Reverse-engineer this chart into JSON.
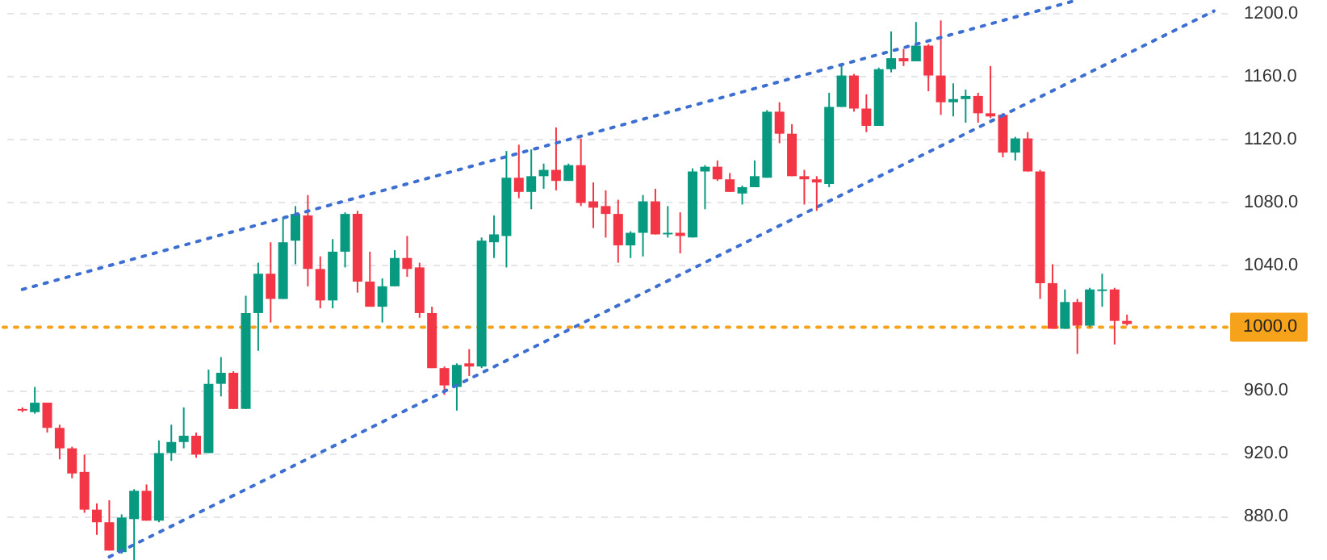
{
  "chart_data": {
    "type": "candlestick",
    "categories": [
      null,
      null,
      null,
      null,
      null,
      null,
      null,
      null,
      null,
      null,
      null,
      null,
      null,
      null,
      null,
      null,
      null,
      null,
      null,
      null,
      null,
      null,
      null,
      null,
      null,
      null,
      null,
      null,
      null,
      null,
      null,
      null,
      null,
      null,
      null,
      null,
      null,
      null,
      null,
      null,
      null,
      null,
      null,
      null,
      null,
      null,
      null,
      null,
      null,
      null,
      null,
      null,
      null,
      null,
      null,
      null,
      null,
      null,
      null,
      null,
      null,
      null,
      null,
      null,
      null,
      null,
      null,
      null,
      null,
      null,
      null,
      null,
      null,
      null,
      null,
      null,
      null,
      null,
      null,
      null,
      null,
      null,
      null,
      null,
      null,
      null,
      null,
      null,
      null,
      null,
      null,
      null,
      null,
      null,
      null,
      null,
      null
    ],
    "ohlc": [
      [
        948,
        949,
        946,
        947
      ],
      [
        946,
        962,
        945,
        952
      ],
      [
        952,
        952,
        933,
        936
      ],
      [
        936,
        938,
        916,
        923
      ],
      [
        923,
        924,
        904,
        907
      ],
      [
        908,
        919,
        882,
        884
      ],
      [
        884,
        888,
        868,
        876
      ],
      [
        876,
        890,
        858,
        858
      ],
      [
        857,
        881,
        856,
        879
      ],
      [
        878,
        897,
        852,
        896
      ],
      [
        896,
        900,
        877,
        877
      ],
      [
        877,
        928,
        876,
        920
      ],
      [
        920,
        938,
        915,
        927
      ],
      [
        927,
        949,
        923,
        931
      ],
      [
        931,
        933,
        917,
        919
      ],
      [
        920,
        973,
        920,
        964
      ],
      [
        964,
        981,
        956,
        971
      ],
      [
        971,
        972,
        948,
        948
      ],
      [
        948,
        1020,
        948,
        1009
      ],
      [
        1009,
        1041,
        985,
        1034
      ],
      [
        1034,
        1054,
        1003,
        1018
      ],
      [
        1018,
        1070,
        1018,
        1054
      ],
      [
        1055,
        1077,
        1040,
        1072
      ],
      [
        1071,
        1084,
        1026,
        1037
      ],
      [
        1037,
        1045,
        1012,
        1017
      ],
      [
        1017,
        1056,
        1012,
        1048
      ],
      [
        1048,
        1073,
        1038,
        1072
      ],
      [
        1072,
        1074,
        1022,
        1029
      ],
      [
        1029,
        1048,
        1013,
        1013
      ],
      [
        1013,
        1031,
        1003,
        1026
      ],
      [
        1026,
        1049,
        1026,
        1044
      ],
      [
        1044,
        1058,
        1032,
        1037
      ],
      [
        1038,
        1041,
        1006,
        1009
      ],
      [
        1009,
        1013,
        974,
        974
      ],
      [
        974,
        975,
        957,
        963
      ],
      [
        962,
        977,
        947,
        976
      ],
      [
        977,
        986,
        969,
        975
      ],
      [
        975,
        1057,
        974,
        1055
      ],
      [
        1054,
        1071,
        1044,
        1059
      ],
      [
        1058,
        1112,
        1038,
        1095
      ],
      [
        1095,
        1116,
        1082,
        1086
      ],
      [
        1086,
        1113,
        1075,
        1096
      ],
      [
        1096,
        1104,
        1088,
        1100
      ],
      [
        1100,
        1127,
        1087,
        1093
      ],
      [
        1093,
        1104,
        1093,
        1103
      ],
      [
        1103,
        1120,
        1077,
        1079
      ],
      [
        1080,
        1092,
        1063,
        1076
      ],
      [
        1077,
        1087,
        1057,
        1072
      ],
      [
        1072,
        1081,
        1041,
        1052
      ],
      [
        1052,
        1061,
        1044,
        1060
      ],
      [
        1060,
        1084,
        1045,
        1080
      ],
      [
        1080,
        1088,
        1059,
        1059
      ],
      [
        1059,
        1077,
        1057,
        1060
      ],
      [
        1060,
        1073,
        1047,
        1058
      ],
      [
        1057,
        1101,
        1057,
        1099
      ],
      [
        1099,
        1103,
        1075,
        1102
      ],
      [
        1102,
        1106,
        1093,
        1094
      ],
      [
        1094,
        1098,
        1086,
        1086
      ],
      [
        1085,
        1090,
        1078,
        1089
      ],
      [
        1089,
        1106,
        1089,
        1096
      ],
      [
        1095,
        1138,
        1095,
        1137
      ],
      [
        1137,
        1143,
        1117,
        1123
      ],
      [
        1123,
        1129,
        1096,
        1096
      ],
      [
        1096,
        1100,
        1078,
        1094
      ],
      [
        1094,
        1096,
        1074,
        1092
      ],
      [
        1091,
        1149,
        1089,
        1140
      ],
      [
        1140,
        1166,
        1140,
        1160
      ],
      [
        1160,
        1161,
        1137,
        1139
      ],
      [
        1139,
        1148,
        1124,
        1128
      ],
      [
        1128,
        1165,
        1128,
        1164
      ],
      [
        1164,
        1188,
        1162,
        1171
      ],
      [
        1171,
        1177,
        1166,
        1169
      ],
      [
        1169,
        1194,
        1169,
        1179
      ],
      [
        1179,
        1180,
        1150,
        1160
      ],
      [
        1160,
        1195,
        1135,
        1143
      ],
      [
        1143,
        1155,
        1134,
        1145
      ],
      [
        1145,
        1151,
        1130,
        1147
      ],
      [
        1147,
        1149,
        1130,
        1136
      ],
      [
        1136,
        1166,
        1133,
        1134
      ],
      [
        1135,
        1136,
        1108,
        1111
      ],
      [
        1111,
        1121,
        1106,
        1120
      ],
      [
        1120,
        1124,
        1099,
        1099
      ],
      [
        1099,
        1100,
        1018,
        1028
      ],
      [
        1028,
        1040,
        999,
        999
      ],
      [
        999,
        1024,
        999,
        1016
      ],
      [
        1016,
        1018,
        983,
        1001
      ],
      [
        1001,
        1025,
        1000,
        1024
      ],
      [
        1023,
        1034,
        1013,
        1024
      ],
      [
        1024,
        1025,
        989,
        1004
      ],
      [
        1004,
        1008,
        1001,
        1002
      ],
      null,
      null,
      null,
      null,
      null,
      null,
      null
    ],
    "colors": [
      "#f23645",
      "#089981",
      "#f23645",
      "#f23645",
      "#f23645",
      "#f23645",
      "#f23645",
      "#f23645",
      "#089981",
      "#089981",
      "#f23645",
      "#089981",
      "#089981",
      "#089981",
      "#f23645",
      "#089981",
      "#089981",
      "#f23645",
      "#089981",
      "#089981",
      "#f23645",
      "#089981",
      "#089981",
      "#f23645",
      "#f23645",
      "#089981",
      "#089981",
      "#f23645",
      "#f23645",
      "#089981",
      "#089981",
      "#f23645",
      "#f23645",
      "#f23645",
      "#f23645",
      "#089981",
      "#f23645",
      "#089981",
      "#089981",
      "#089981",
      "#f23645",
      "#089981",
      "#089981",
      "#f23645",
      "#089981",
      "#f23645",
      "#f23645",
      "#f23645",
      "#f23645",
      "#089981",
      "#089981",
      "#f23645",
      "#089981",
      "#f23645",
      "#089981",
      "#089981",
      "#f23645",
      "#f23645",
      "#089981",
      "#089981",
      "#089981",
      "#f23645",
      "#f23645",
      "#f23645",
      "#f23645",
      "#089981",
      "#089981",
      "#f23645",
      "#f23645",
      "#089981",
      "#089981",
      "#f23645",
      "#089981",
      "#f23645",
      "#f23645",
      "#089981",
      "#089981",
      "#f23645",
      "#f23645",
      "#f23645",
      "#089981",
      "#f23645",
      "#f23645",
      "#f23645",
      "#089981",
      "#f23645",
      "#089981",
      "#089981",
      "#f23645",
      "#f23645",
      null,
      null,
      null,
      null,
      null,
      null,
      null
    ],
    "series": [
      {
        "type": "line",
        "color": "#3d6fd1",
        "line_style": "dotted",
        "values": [
          1024,
          null,
          null,
          null,
          null,
          null,
          null,
          null,
          null,
          null,
          null,
          null,
          null,
          null,
          null,
          null,
          null,
          null,
          null,
          null,
          null,
          null,
          null,
          null,
          null,
          null,
          null,
          null,
          null,
          null,
          null,
          null,
          null,
          null,
          null,
          null,
          null,
          null,
          null,
          null,
          null,
          null,
          null,
          null,
          null,
          null,
          null,
          null,
          null,
          null,
          null,
          null,
          null,
          null,
          null,
          null,
          null,
          null,
          null,
          null,
          null,
          null,
          null,
          null,
          null,
          null,
          null,
          null,
          null,
          null,
          null,
          null,
          null,
          null,
          null,
          null,
          null,
          null,
          null,
          null,
          null,
          null,
          null,
          null,
          null,
          1208,
          null,
          null,
          null,
          null,
          null,
          null,
          null,
          null,
          null,
          null,
          null
        ]
      },
      {
        "type": "line",
        "color": "#3d6fd1",
        "line_style": "dotted",
        "values": [
          null,
          null,
          null,
          null,
          null,
          null,
          null,
          854,
          null,
          null,
          null,
          null,
          null,
          null,
          null,
          null,
          null,
          null,
          null,
          null,
          null,
          null,
          null,
          null,
          null,
          null,
          null,
          null,
          null,
          null,
          null,
          null,
          null,
          null,
          null,
          null,
          null,
          null,
          null,
          null,
          null,
          null,
          null,
          null,
          null,
          null,
          null,
          null,
          null,
          null,
          null,
          null,
          null,
          null,
          null,
          null,
          null,
          null,
          null,
          null,
          null,
          null,
          null,
          null,
          null,
          null,
          null,
          null,
          null,
          null,
          null,
          null,
          null,
          null,
          null,
          null,
          null,
          null,
          null,
          null,
          null,
          null,
          null,
          null,
          null,
          null,
          null,
          null,
          null,
          null,
          null,
          null,
          null,
          null,
          null,
          null,
          1201
        ]
      }
    ],
    "ylim": [
      852,
      1208
    ],
    "yticks": [
      {
        "value": 880,
        "label": "880.0"
      },
      {
        "value": 920,
        "label": "920.0"
      },
      {
        "value": 960,
        "label": "960.0"
      },
      {
        "value": 1040,
        "label": "1040.0"
      },
      {
        "value": 1080,
        "label": "1080.0"
      },
      {
        "value": 1120,
        "label": "1120.0"
      },
      {
        "value": 1160,
        "label": "1160.0"
      },
      {
        "value": 1200,
        "label": "1200.0"
      }
    ],
    "ref_lines": [
      {
        "axis": "y",
        "value": 1000,
        "label": "1000.0",
        "color": "#f7a21b",
        "line_style": "dotted"
      }
    ],
    "grid": "y"
  }
}
